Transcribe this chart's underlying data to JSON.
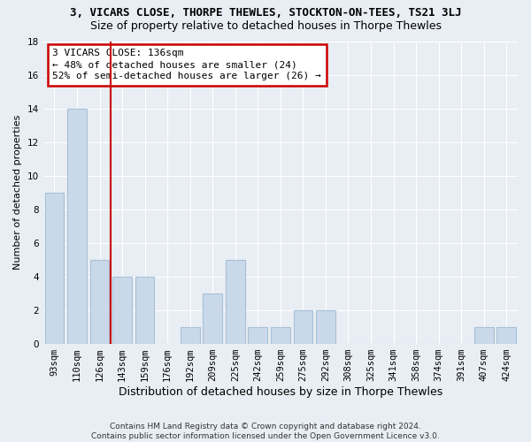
{
  "title": "3, VICARS CLOSE, THORPE THEWLES, STOCKTON-ON-TEES, TS21 3LJ",
  "subtitle": "Size of property relative to detached houses in Thorpe Thewles",
  "xlabel": "Distribution of detached houses by size in Thorpe Thewles",
  "ylabel": "Number of detached properties",
  "categories": [
    "93sqm",
    "110sqm",
    "126sqm",
    "143sqm",
    "159sqm",
    "176sqm",
    "192sqm",
    "209sqm",
    "225sqm",
    "242sqm",
    "259sqm",
    "275sqm",
    "292sqm",
    "308sqm",
    "325sqm",
    "341sqm",
    "358sqm",
    "374sqm",
    "391sqm",
    "407sqm",
    "424sqm"
  ],
  "values": [
    9,
    14,
    5,
    4,
    4,
    0,
    1,
    3,
    5,
    1,
    1,
    2,
    2,
    0,
    0,
    0,
    0,
    0,
    0,
    1,
    1
  ],
  "bar_color": "#c9d9ea",
  "bar_edge_color": "#a8c0d6",
  "vline_x": 2.5,
  "vline_color": "#cc0000",
  "annotation_line1": "3 VICARS CLOSE: 136sqm",
  "annotation_line2": "← 48% of detached houses are smaller (24)",
  "annotation_line3": "52% of semi-detached houses are larger (26) →",
  "annotation_box_color": "#ffffff",
  "annotation_box_edge": "#cc0000",
  "ylim": [
    0,
    18
  ],
  "yticks": [
    0,
    2,
    4,
    6,
    8,
    10,
    12,
    14,
    16,
    18
  ],
  "footer_text": "Contains HM Land Registry data © Crown copyright and database right 2024.\nContains public sector information licensed under the Open Government Licence v3.0.",
  "bg_color": "#e8eef4",
  "grid_color": "#ffffff",
  "title_fontsize": 9,
  "subtitle_fontsize": 9,
  "ylabel_fontsize": 8,
  "xlabel_fontsize": 9,
  "tick_fontsize": 7.5,
  "annotation_fontsize": 8
}
